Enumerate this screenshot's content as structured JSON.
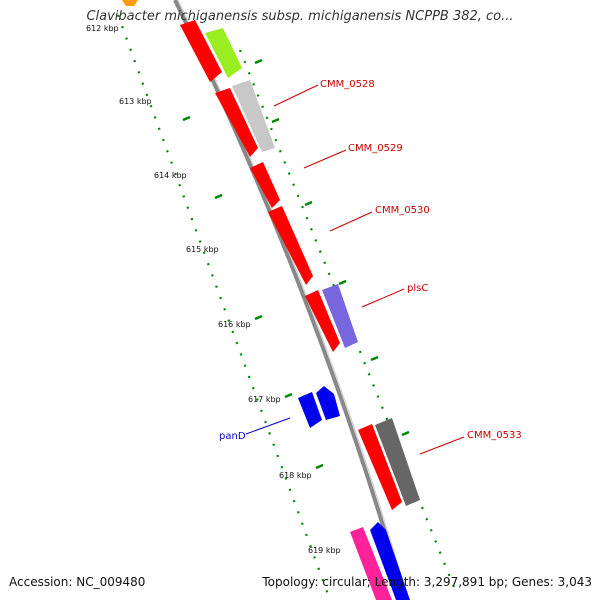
{
  "title": "Clavibacter michiganensis subsp. michiganensis NCPPB 382, co...",
  "footer": {
    "accession": "Accession: NC_009480",
    "summary": "Topology: circular; Length: 3,297,891 bp; Genes: 3,043"
  },
  "ticks": [
    {
      "label": "612 kbp"
    },
    {
      "label": "613 kbp"
    },
    {
      "label": "614 kbp"
    },
    {
      "label": "615 kbp"
    },
    {
      "label": "616 kbp"
    },
    {
      "label": "617 kbp"
    },
    {
      "label": "618 kbp"
    },
    {
      "label": "619 kbp"
    }
  ],
  "gene_labels": [
    {
      "label": "CMM_0528",
      "color": "#cc0000"
    },
    {
      "label": "CMM_0529",
      "color": "#cc0000"
    },
    {
      "label": "CMM_0530",
      "color": "#cc0000"
    },
    {
      "label": "plsC",
      "color": "#cc0000"
    },
    {
      "label": "CMM_0533",
      "color": "#cc0000"
    },
    {
      "label": "panD",
      "color": "#0000cc"
    }
  ],
  "colors": {
    "backbone": "#888888",
    "cds": "#ff0000",
    "tick": "#008800",
    "lime": "#99ee22",
    "light_gray": "#c8c8c8",
    "purple": "#7766dd",
    "dark_gray": "#666666",
    "blue": "#0000ee",
    "magenta": "#ff2299",
    "orange": "#ff9900"
  }
}
